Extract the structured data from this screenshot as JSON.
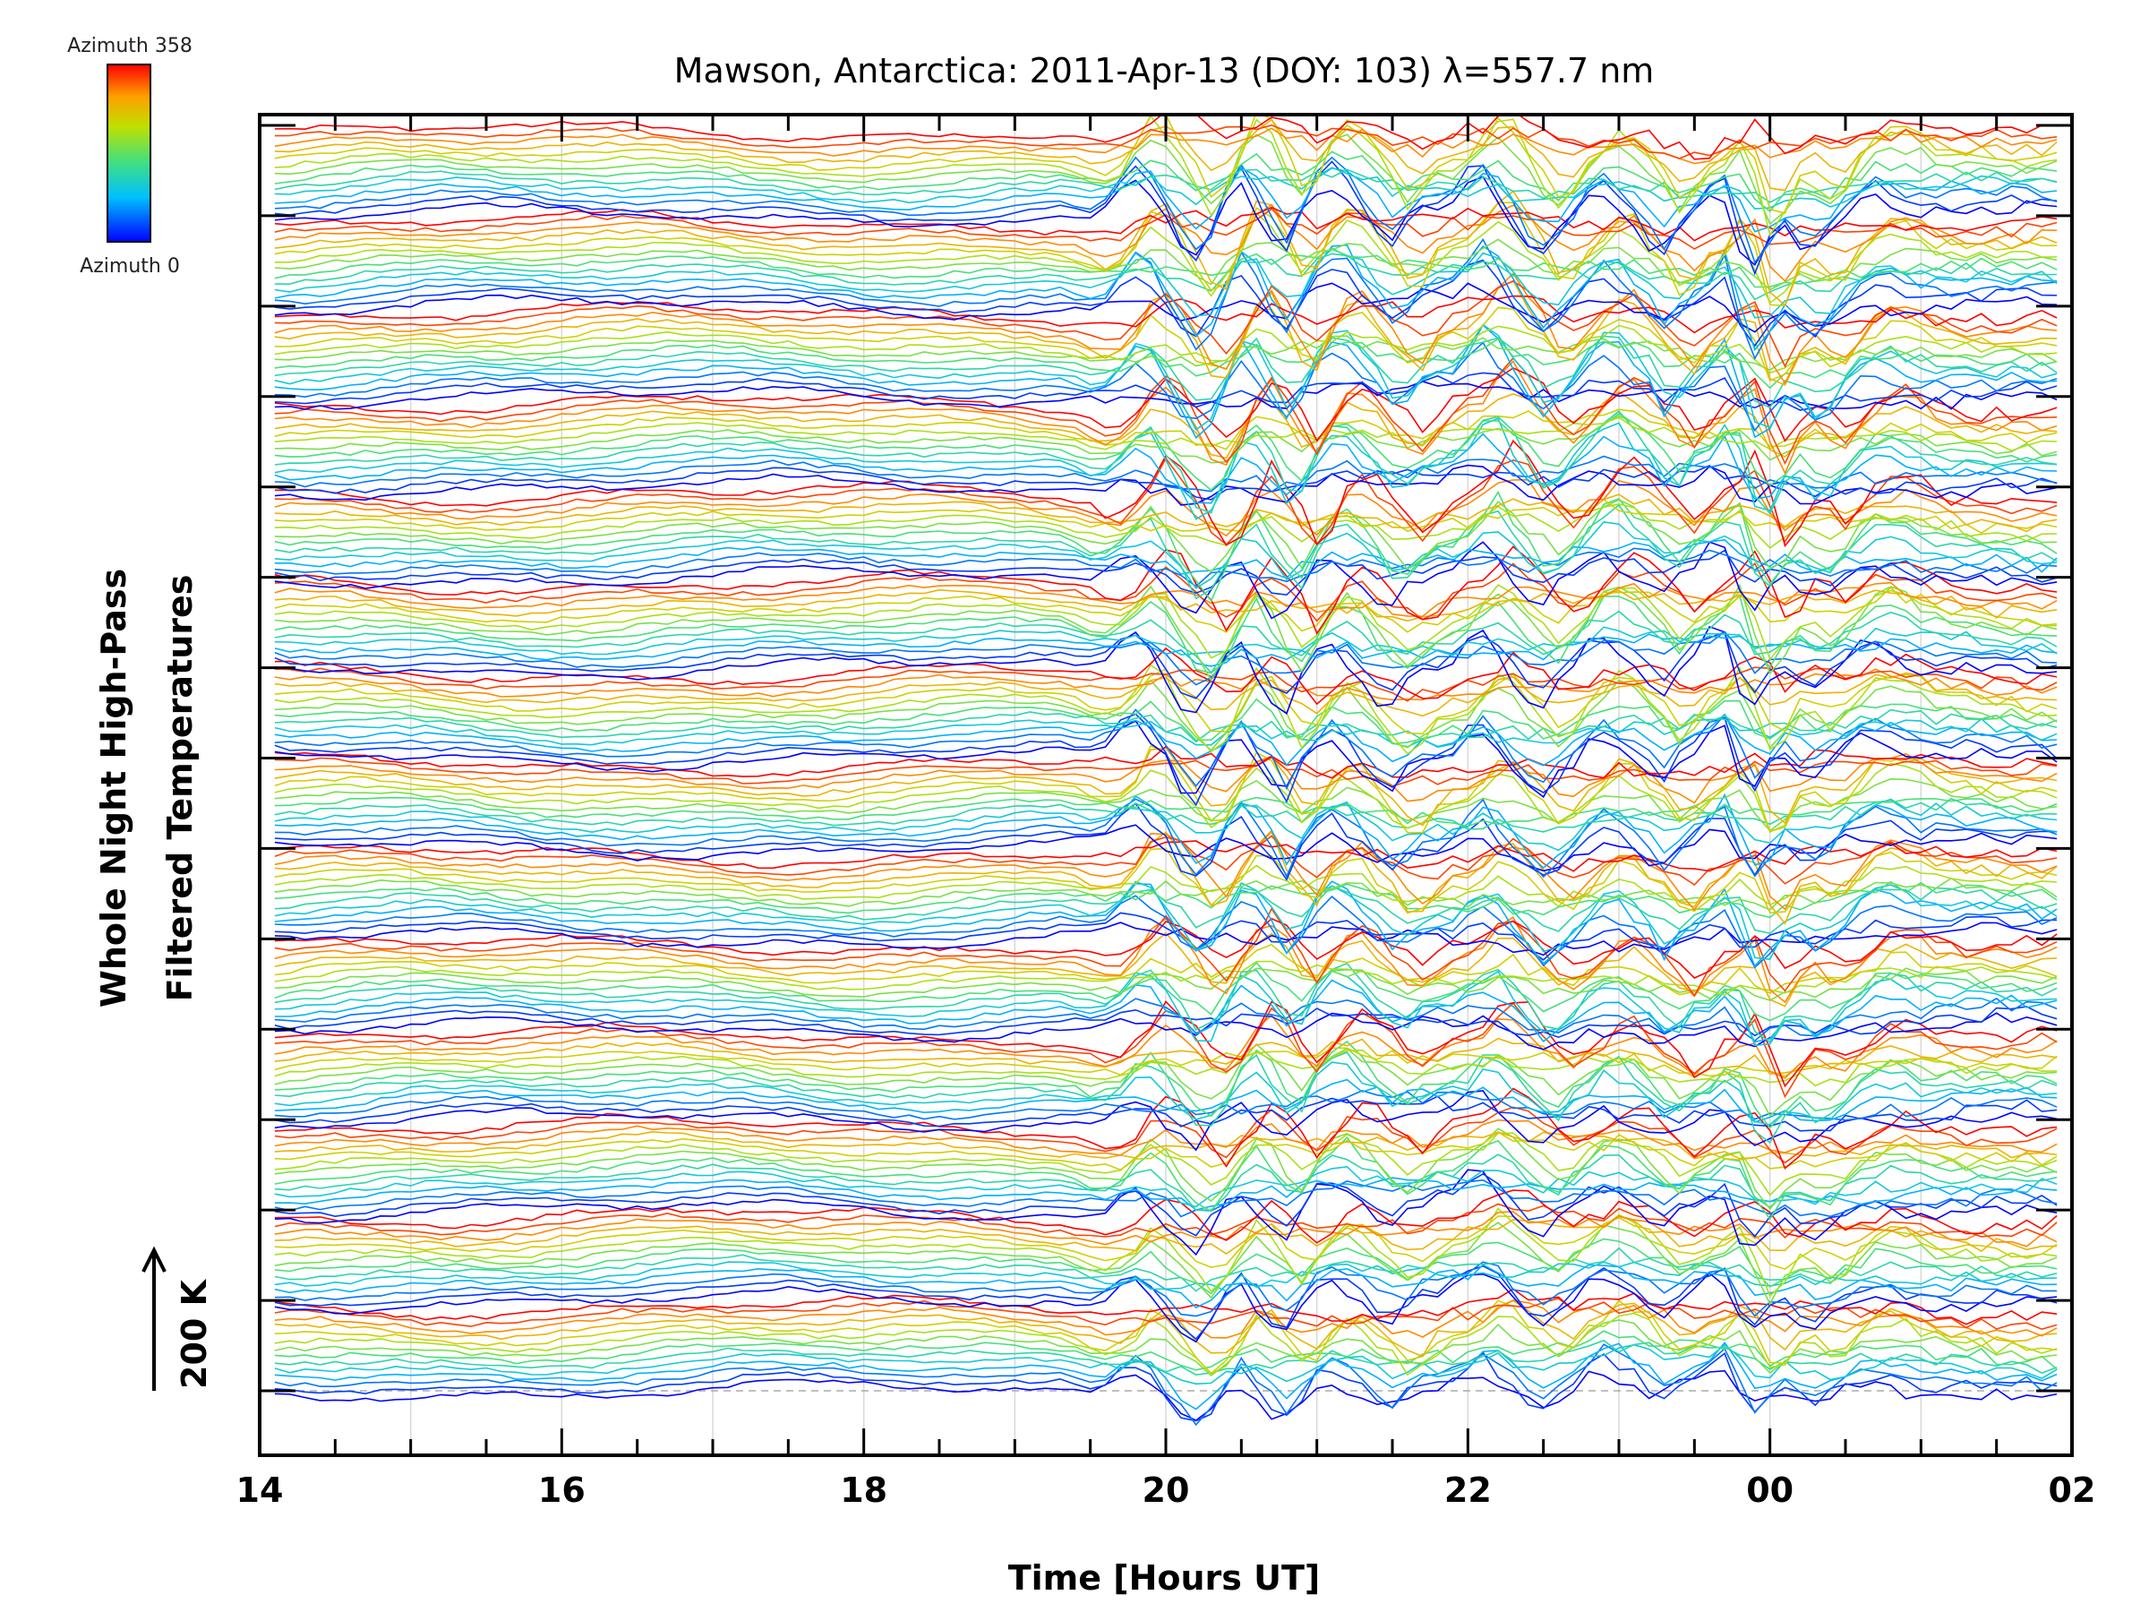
{
  "chart_data": {
    "type": "line",
    "title": "Mawson, Antarctica: 2011-Apr-13 (DOY: 103) λ=557.7 nm",
    "xlabel": "Time [Hours UT]",
    "ylabel_line1": "Whole Night High-Pass",
    "ylabel_line2": "Filtered Temperatures",
    "scale_label": "200 K",
    "x_tick_labels": [
      "14",
      "16",
      "18",
      "20",
      "22",
      "00",
      "02"
    ],
    "xlim_hours_ut": [
      14,
      26
    ],
    "legend": {
      "top_label": "Azimuth 358",
      "bottom_label": "Azimuth 0",
      "colormap": [
        "#0000ff",
        "#00c0ff",
        "#40e080",
        "#c0e000",
        "#ffa000",
        "#ff0000"
      ]
    },
    "grid": "vertical dotted lines at each hour",
    "series_description": "Stacked time series, one per azimuth sector (0 to 358 deg), colored by azimuth, repeated in groups vertically",
    "n_groups": 14,
    "series_per_group": 14,
    "activity_onset_hour": 19.3
  }
}
